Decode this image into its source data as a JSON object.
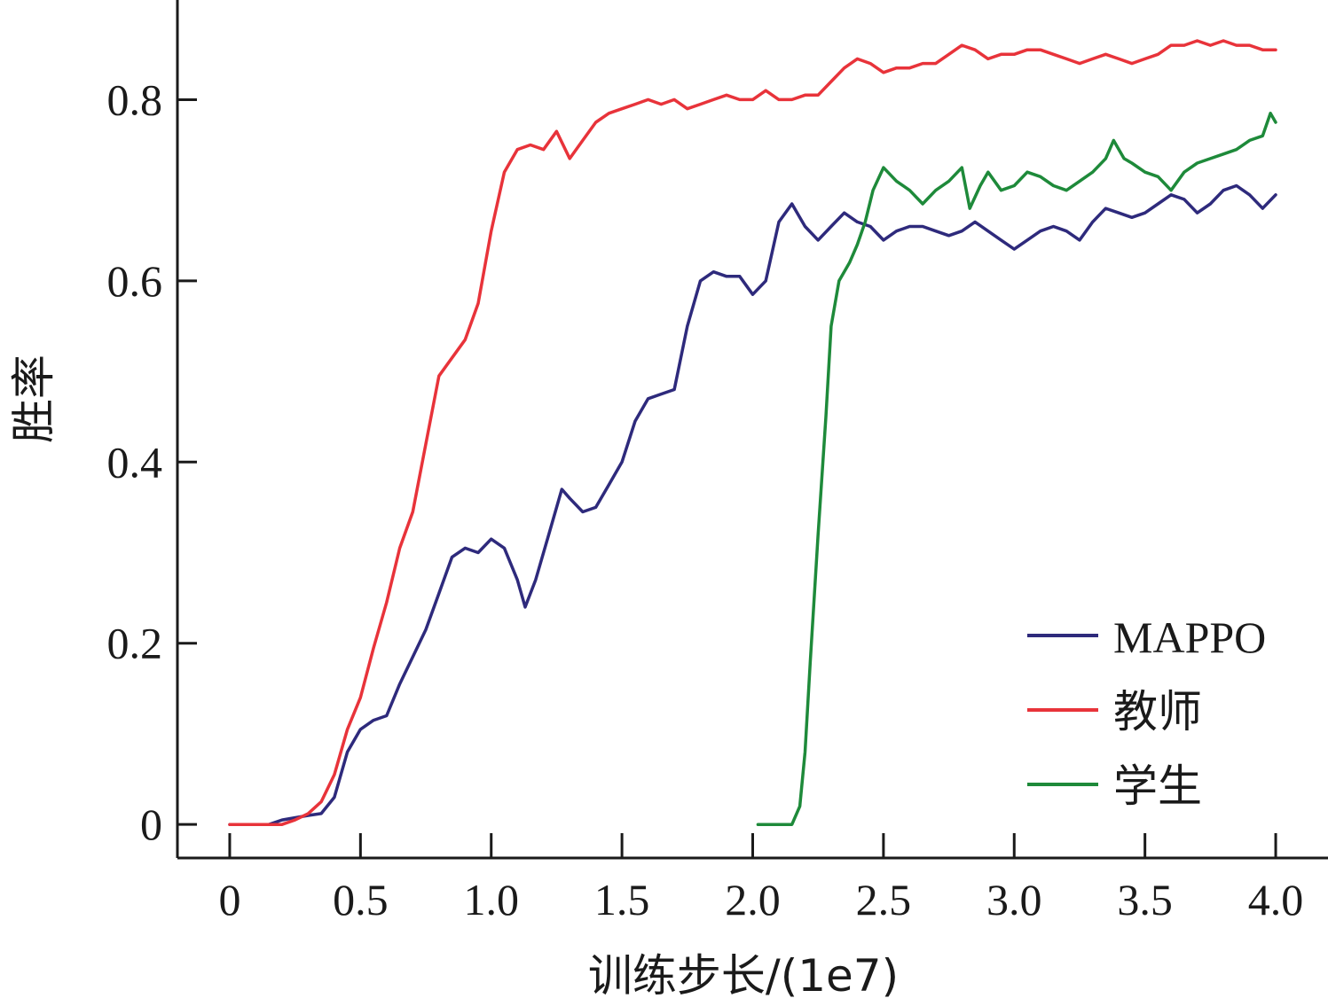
{
  "chart_data": {
    "type": "line",
    "title": "",
    "xlabel": "训练步长/(1e7)",
    "ylabel": "胜率",
    "xlim": [
      -0.2,
      4.2
    ],
    "ylim": [
      -0.037,
      0.91
    ],
    "x_ticks": [
      {
        "value": 0,
        "label": "0"
      },
      {
        "value": 0.5,
        "label": "0.5"
      },
      {
        "value": 1.0,
        "label": "1.0"
      },
      {
        "value": 1.5,
        "label": "1.5"
      },
      {
        "value": 2.0,
        "label": "2.0"
      },
      {
        "value": 2.5,
        "label": "2.5"
      },
      {
        "value": 3.0,
        "label": "3.0"
      },
      {
        "value": 3.5,
        "label": "3.5"
      },
      {
        "value": 4.0,
        "label": "4.0"
      }
    ],
    "y_ticks": [
      {
        "value": 0,
        "label": "0"
      },
      {
        "value": 0.2,
        "label": "0.2"
      },
      {
        "value": 0.4,
        "label": "0.4"
      },
      {
        "value": 0.6,
        "label": "0.6"
      },
      {
        "value": 0.8,
        "label": "0.8"
      }
    ],
    "grid": false,
    "legend_position": "bottom-right",
    "series": [
      {
        "name": "MAPPO",
        "color": "#2e2a7c",
        "points": [
          [
            0,
            0
          ],
          [
            0.15,
            0
          ],
          [
            0.2,
            0.005
          ],
          [
            0.3,
            0.01
          ],
          [
            0.35,
            0.012
          ],
          [
            0.4,
            0.03
          ],
          [
            0.45,
            0.08
          ],
          [
            0.5,
            0.105
          ],
          [
            0.55,
            0.115
          ],
          [
            0.6,
            0.12
          ],
          [
            0.65,
            0.155
          ],
          [
            0.7,
            0.185
          ],
          [
            0.75,
            0.215
          ],
          [
            0.8,
            0.255
          ],
          [
            0.85,
            0.295
          ],
          [
            0.9,
            0.305
          ],
          [
            0.95,
            0.3
          ],
          [
            1.0,
            0.315
          ],
          [
            1.05,
            0.305
          ],
          [
            1.1,
            0.27
          ],
          [
            1.13,
            0.24
          ],
          [
            1.17,
            0.27
          ],
          [
            1.22,
            0.32
          ],
          [
            1.27,
            0.37
          ],
          [
            1.3,
            0.36
          ],
          [
            1.35,
            0.345
          ],
          [
            1.4,
            0.35
          ],
          [
            1.45,
            0.375
          ],
          [
            1.5,
            0.4
          ],
          [
            1.55,
            0.445
          ],
          [
            1.6,
            0.47
          ],
          [
            1.65,
            0.475
          ],
          [
            1.7,
            0.48
          ],
          [
            1.75,
            0.55
          ],
          [
            1.8,
            0.6
          ],
          [
            1.85,
            0.61
          ],
          [
            1.9,
            0.605
          ],
          [
            1.95,
            0.605
          ],
          [
            2.0,
            0.585
          ],
          [
            2.05,
            0.6
          ],
          [
            2.1,
            0.665
          ],
          [
            2.15,
            0.685
          ],
          [
            2.2,
            0.66
          ],
          [
            2.25,
            0.645
          ],
          [
            2.3,
            0.66
          ],
          [
            2.35,
            0.675
          ],
          [
            2.4,
            0.665
          ],
          [
            2.45,
            0.66
          ],
          [
            2.5,
            0.645
          ],
          [
            2.55,
            0.655
          ],
          [
            2.6,
            0.66
          ],
          [
            2.65,
            0.66
          ],
          [
            2.7,
            0.655
          ],
          [
            2.75,
            0.65
          ],
          [
            2.8,
            0.655
          ],
          [
            2.85,
            0.665
          ],
          [
            2.9,
            0.655
          ],
          [
            2.95,
            0.645
          ],
          [
            3.0,
            0.635
          ],
          [
            3.05,
            0.645
          ],
          [
            3.1,
            0.655
          ],
          [
            3.15,
            0.66
          ],
          [
            3.2,
            0.655
          ],
          [
            3.25,
            0.645
          ],
          [
            3.3,
            0.665
          ],
          [
            3.35,
            0.68
          ],
          [
            3.4,
            0.675
          ],
          [
            3.45,
            0.67
          ],
          [
            3.5,
            0.675
          ],
          [
            3.55,
            0.685
          ],
          [
            3.6,
            0.695
          ],
          [
            3.65,
            0.69
          ],
          [
            3.7,
            0.675
          ],
          [
            3.75,
            0.685
          ],
          [
            3.8,
            0.7
          ],
          [
            3.85,
            0.705
          ],
          [
            3.9,
            0.695
          ],
          [
            3.95,
            0.68
          ],
          [
            4.0,
            0.695
          ]
        ]
      },
      {
        "name": "教师",
        "color": "#e8333a",
        "points": [
          [
            0,
            0
          ],
          [
            0.2,
            0
          ],
          [
            0.25,
            0.005
          ],
          [
            0.3,
            0.012
          ],
          [
            0.35,
            0.025
          ],
          [
            0.4,
            0.055
          ],
          [
            0.45,
            0.105
          ],
          [
            0.5,
            0.14
          ],
          [
            0.55,
            0.195
          ],
          [
            0.6,
            0.245
          ],
          [
            0.65,
            0.305
          ],
          [
            0.7,
            0.345
          ],
          [
            0.75,
            0.42
          ],
          [
            0.8,
            0.495
          ],
          [
            0.85,
            0.515
          ],
          [
            0.9,
            0.535
          ],
          [
            0.95,
            0.575
          ],
          [
            1.0,
            0.655
          ],
          [
            1.05,
            0.72
          ],
          [
            1.1,
            0.745
          ],
          [
            1.15,
            0.75
          ],
          [
            1.2,
            0.745
          ],
          [
            1.25,
            0.765
          ],
          [
            1.3,
            0.735
          ],
          [
            1.35,
            0.755
          ],
          [
            1.4,
            0.775
          ],
          [
            1.45,
            0.785
          ],
          [
            1.5,
            0.79
          ],
          [
            1.55,
            0.795
          ],
          [
            1.6,
            0.8
          ],
          [
            1.65,
            0.795
          ],
          [
            1.7,
            0.8
          ],
          [
            1.75,
            0.79
          ],
          [
            1.8,
            0.795
          ],
          [
            1.85,
            0.8
          ],
          [
            1.9,
            0.805
          ],
          [
            1.95,
            0.8
          ],
          [
            2.0,
            0.8
          ],
          [
            2.05,
            0.81
          ],
          [
            2.1,
            0.8
          ],
          [
            2.15,
            0.8
          ],
          [
            2.2,
            0.805
          ],
          [
            2.25,
            0.805
          ],
          [
            2.3,
            0.82
          ],
          [
            2.35,
            0.835
          ],
          [
            2.4,
            0.845
          ],
          [
            2.45,
            0.84
          ],
          [
            2.5,
            0.83
          ],
          [
            2.55,
            0.835
          ],
          [
            2.6,
            0.835
          ],
          [
            2.65,
            0.84
          ],
          [
            2.7,
            0.84
          ],
          [
            2.75,
            0.85
          ],
          [
            2.8,
            0.86
          ],
          [
            2.85,
            0.855
          ],
          [
            2.9,
            0.845
          ],
          [
            2.95,
            0.85
          ],
          [
            3.0,
            0.85
          ],
          [
            3.05,
            0.855
          ],
          [
            3.1,
            0.855
          ],
          [
            3.15,
            0.85
          ],
          [
            3.2,
            0.845
          ],
          [
            3.25,
            0.84
          ],
          [
            3.3,
            0.845
          ],
          [
            3.35,
            0.85
          ],
          [
            3.4,
            0.845
          ],
          [
            3.45,
            0.84
          ],
          [
            3.5,
            0.845
          ],
          [
            3.55,
            0.85
          ],
          [
            3.6,
            0.86
          ],
          [
            3.65,
            0.86
          ],
          [
            3.7,
            0.865
          ],
          [
            3.75,
            0.86
          ],
          [
            3.8,
            0.865
          ],
          [
            3.85,
            0.86
          ],
          [
            3.9,
            0.86
          ],
          [
            3.95,
            0.855
          ],
          [
            4.0,
            0.855
          ]
        ]
      },
      {
        "name": "学生",
        "color": "#1e8a3a",
        "points": [
          [
            2.02,
            0
          ],
          [
            2.1,
            0
          ],
          [
            2.15,
            0
          ],
          [
            2.18,
            0.02
          ],
          [
            2.2,
            0.08
          ],
          [
            2.22,
            0.18
          ],
          [
            2.25,
            0.32
          ],
          [
            2.28,
            0.45
          ],
          [
            2.3,
            0.55
          ],
          [
            2.33,
            0.6
          ],
          [
            2.37,
            0.62
          ],
          [
            2.4,
            0.64
          ],
          [
            2.43,
            0.665
          ],
          [
            2.46,
            0.7
          ],
          [
            2.5,
            0.725
          ],
          [
            2.55,
            0.71
          ],
          [
            2.6,
            0.7
          ],
          [
            2.65,
            0.685
          ],
          [
            2.7,
            0.7
          ],
          [
            2.75,
            0.71
          ],
          [
            2.8,
            0.725
          ],
          [
            2.83,
            0.68
          ],
          [
            2.87,
            0.705
          ],
          [
            2.9,
            0.72
          ],
          [
            2.95,
            0.7
          ],
          [
            3.0,
            0.705
          ],
          [
            3.05,
            0.72
          ],
          [
            3.1,
            0.715
          ],
          [
            3.15,
            0.705
          ],
          [
            3.2,
            0.7
          ],
          [
            3.25,
            0.71
          ],
          [
            3.3,
            0.72
          ],
          [
            3.35,
            0.735
          ],
          [
            3.38,
            0.755
          ],
          [
            3.42,
            0.735
          ],
          [
            3.45,
            0.73
          ],
          [
            3.5,
            0.72
          ],
          [
            3.55,
            0.715
          ],
          [
            3.6,
            0.7
          ],
          [
            3.65,
            0.72
          ],
          [
            3.7,
            0.73
          ],
          [
            3.75,
            0.735
          ],
          [
            3.8,
            0.74
          ],
          [
            3.85,
            0.745
          ],
          [
            3.9,
            0.755
          ],
          [
            3.95,
            0.76
          ],
          [
            3.98,
            0.785
          ],
          [
            4.0,
            0.775
          ]
        ]
      }
    ]
  }
}
